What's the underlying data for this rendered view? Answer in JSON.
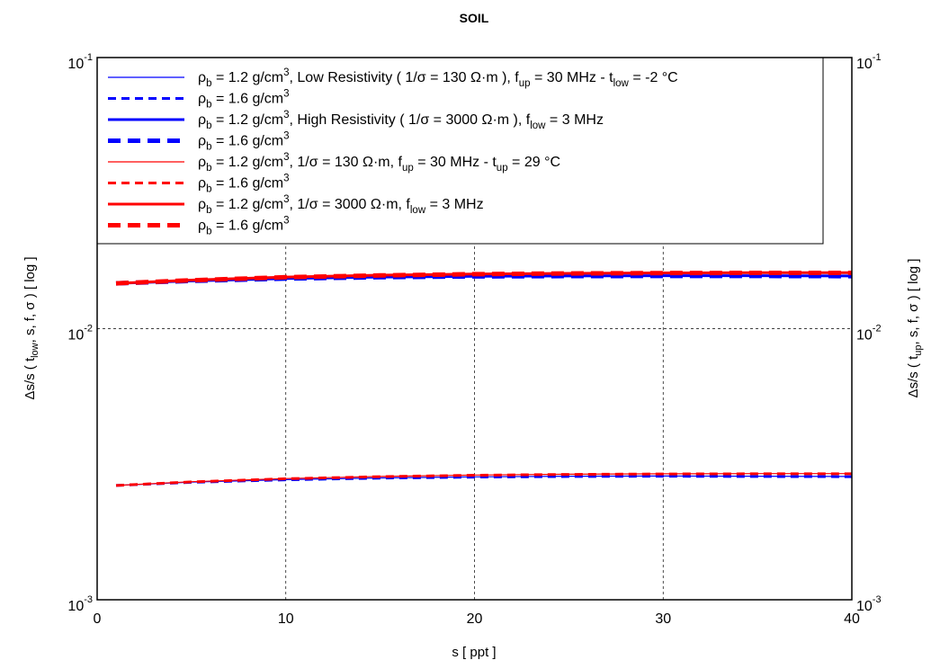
{
  "chart_data": {
    "type": "line",
    "title": "SOIL",
    "xlabel": "s [ ppt ]",
    "ylabel_left_parts": [
      "Δs/s ( t",
      "low",
      ", s, f, σ ) [ log ]"
    ],
    "ylabel_right_parts": [
      "Δs/s ( t",
      "up",
      ", s, f, σ ) [ log ]"
    ],
    "xlim": [
      0,
      40
    ],
    "ylim": [
      0.001,
      0.1
    ],
    "yscale": "log",
    "grid": true,
    "legend_position": "top-left",
    "x_ticks": [
      "0",
      "10",
      "20",
      "30",
      "40"
    ],
    "y_ticks": [
      {
        "base": "10",
        "exp": "-3"
      },
      {
        "base": "10",
        "exp": "-2"
      },
      {
        "base": "10",
        "exp": "-1"
      }
    ],
    "x": [
      1,
      5,
      10,
      15,
      20,
      25,
      30,
      35,
      40
    ],
    "series": [
      {
        "legend": [
          {
            "t": "ρ"
          },
          {
            "t": "b",
            "sub": 1
          },
          {
            "t": " = 1.2 g/cm"
          },
          {
            "t": "3",
            "sup": 1
          },
          {
            "t": ", Low Resistivity ( 1/σ = 130 Ω·m ), f"
          },
          {
            "t": "up",
            "sub": 1
          },
          {
            "t": " = 30 MHz - t"
          },
          {
            "t": "low",
            "sub": 1
          },
          {
            "t": " = -2 °C"
          }
        ],
        "color": "#0000ff",
        "width": 1.2,
        "dash": "",
        "values": [
          0.00264,
          0.002715,
          0.002775,
          0.002815,
          0.00284,
          0.002855,
          0.00286,
          0.002855,
          0.00285
        ]
      },
      {
        "legend": [
          {
            "t": "ρ"
          },
          {
            "t": "b",
            "sub": 1
          },
          {
            "t": " = 1.6 g/cm"
          },
          {
            "t": "3",
            "sup": 1
          }
        ],
        "color": "#0000ff",
        "width": 3,
        "dash": "9,6",
        "values": [
          0.00264,
          0.002712,
          0.00277,
          0.00281,
          0.002835,
          0.00285,
          0.002855,
          0.00285,
          0.002845
        ]
      },
      {
        "legend": [
          {
            "t": "ρ"
          },
          {
            "t": "b",
            "sub": 1
          },
          {
            "t": " = 1.2 g/cm"
          },
          {
            "t": "3",
            "sup": 1
          },
          {
            "t": ", High Resistivity ( 1/σ = 3000 Ω·m ), f"
          },
          {
            "t": "low",
            "sub": 1
          },
          {
            "t": " = 3 MHz"
          }
        ],
        "color": "#0000ff",
        "width": 3,
        "dash": "",
        "values": [
          0.0147,
          0.015,
          0.0153,
          0.0155,
          0.0156,
          0.01565,
          0.01568,
          0.01568,
          0.01565
        ]
      },
      {
        "legend": [
          {
            "t": "ρ"
          },
          {
            "t": "b",
            "sub": 1
          },
          {
            "t": " = 1.6 g/cm"
          },
          {
            "t": "3",
            "sup": 1
          }
        ],
        "color": "#0000ff",
        "width": 5,
        "dash": "14,8",
        "values": [
          0.0147,
          0.015,
          0.0153,
          0.01548,
          0.01558,
          0.01563,
          0.01565,
          0.01565,
          0.01562
        ]
      },
      {
        "legend": [
          {
            "t": "ρ"
          },
          {
            "t": "b",
            "sub": 1
          },
          {
            "t": " = 1.2 g/cm"
          },
          {
            "t": "3",
            "sup": 1
          },
          {
            "t": ", 1/σ = 130 Ω·m, f"
          },
          {
            "t": "up",
            "sub": 1
          },
          {
            "t": " = 30 MHz - t"
          },
          {
            "t": "up",
            "sub": 1
          },
          {
            "t": " = 29 °C"
          }
        ],
        "color": "#ff0000",
        "width": 1.2,
        "dash": "",
        "values": [
          0.00264,
          0.002725,
          0.0028,
          0.00285,
          0.002885,
          0.002905,
          0.002915,
          0.00292,
          0.00292
        ]
      },
      {
        "legend": [
          {
            "t": "ρ"
          },
          {
            "t": "b",
            "sub": 1
          },
          {
            "t": " = 1.6 g/cm"
          },
          {
            "t": "3",
            "sup": 1
          }
        ],
        "color": "#ff0000",
        "width": 3,
        "dash": "9,6",
        "values": [
          0.00264,
          0.002722,
          0.002795,
          0.002845,
          0.00288,
          0.0029,
          0.00291,
          0.002915,
          0.002915
        ]
      },
      {
        "legend": [
          {
            "t": "ρ"
          },
          {
            "t": "b",
            "sub": 1
          },
          {
            "t": " = 1.2 g/cm"
          },
          {
            "t": "3",
            "sup": 1
          },
          {
            "t": ", 1/σ = 3000 Ω·m, f"
          },
          {
            "t": "low",
            "sub": 1
          },
          {
            "t": " = 3 MHz"
          }
        ],
        "color": "#ff0000",
        "width": 3,
        "dash": "",
        "values": [
          0.0147,
          0.0151,
          0.0155,
          0.01575,
          0.0159,
          0.016,
          0.01605,
          0.01608,
          0.01608
        ]
      },
      {
        "legend": [
          {
            "t": "ρ"
          },
          {
            "t": "b",
            "sub": 1
          },
          {
            "t": " = 1.6 g/cm"
          },
          {
            "t": "3",
            "sup": 1
          }
        ],
        "color": "#ff0000",
        "width": 5,
        "dash": "14,8",
        "values": [
          0.0147,
          0.01508,
          0.01548,
          0.01572,
          0.01588,
          0.01598,
          0.01603,
          0.01606,
          0.01606
        ]
      }
    ]
  }
}
